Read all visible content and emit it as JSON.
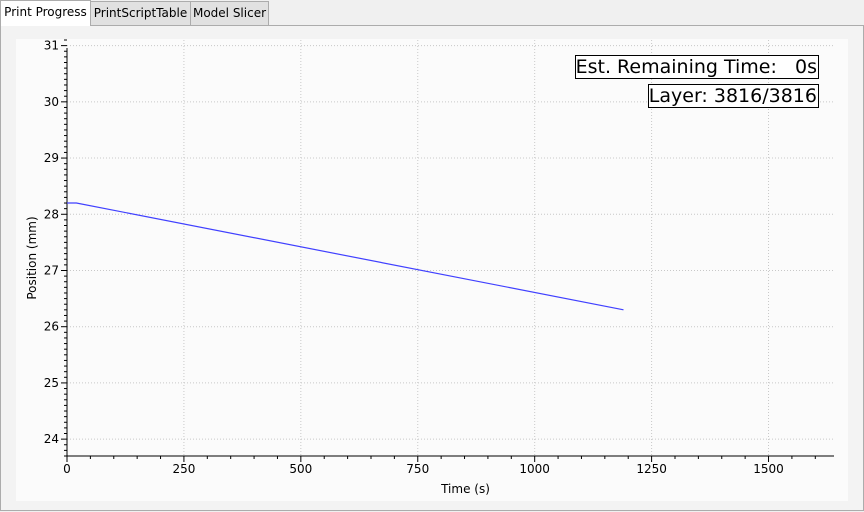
{
  "tabs": [
    {
      "label": "Print Progress",
      "active": true
    },
    {
      "label": "PrintScriptTable",
      "active": false
    },
    {
      "label": "Model Slicer",
      "active": false
    }
  ],
  "overlay": {
    "remaining_time": "Est. Remaining Time:   0s",
    "layer": "Layer: 3816/3816"
  },
  "colors": {
    "series": "#4040ff",
    "grid": "#c8c8c8",
    "axis": "#000000"
  },
  "chart_data": {
    "type": "line",
    "title": "",
    "xlabel": "Time (s)",
    "ylabel": "Position (mm)",
    "xlim": [
      0,
      1640
    ],
    "ylim": [
      23.7,
      31.1
    ],
    "x_ticks": [
      0,
      250,
      500,
      750,
      1000,
      1250,
      1500
    ],
    "y_ticks": [
      24,
      25,
      26,
      27,
      28,
      29,
      30,
      31
    ],
    "grid": true,
    "series": [
      {
        "x": [
          0,
          20,
          1190
        ],
        "y": [
          28.2,
          28.2,
          26.3
        ]
      }
    ]
  }
}
